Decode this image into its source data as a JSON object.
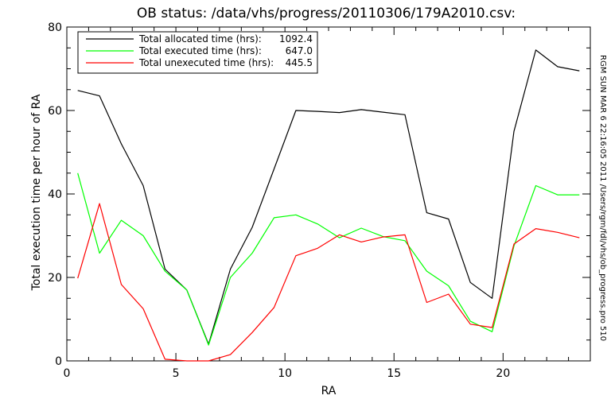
{
  "chart_data": {
    "type": "line",
    "title": "OB status: /data/vhs/progress/20110306/179A2010.csv:",
    "xlabel": "RA",
    "ylabel": "Total execution time per hour of RA",
    "xlim": [
      0,
      24
    ],
    "ylim": [
      0,
      80
    ],
    "x_ticks": [
      0,
      5,
      10,
      15,
      20
    ],
    "y_ticks": [
      0,
      20,
      40,
      60,
      80
    ],
    "x_minor_step": 1,
    "y_minor_step": 5,
    "grid": false,
    "legend_position": "top-left",
    "side_text": "RGM SUN MAR  6 22:16:05 2011  /Users/rgm/fdl/vhs/ob_progress.pro 510",
    "x": [
      0.5,
      1.5,
      2.5,
      3.5,
      4.5,
      5.5,
      6.5,
      7.5,
      8.5,
      9.5,
      10.5,
      11.5,
      12.5,
      13.5,
      14.5,
      15.5,
      16.5,
      17.5,
      18.5,
      19.5,
      20.5,
      21.5,
      22.5,
      23.5
    ],
    "series": [
      {
        "name": "Total allocated time (hrs):",
        "total": "1092.4",
        "color": "#000000",
        "values": [
          64.8,
          63.5,
          52.0,
          42.0,
          22.0,
          17.0,
          4.0,
          22.0,
          32.0,
          46.0,
          60.0,
          59.8,
          59.5,
          60.2,
          59.6,
          59.0,
          35.5,
          34.0,
          18.8,
          15.0,
          55.0,
          74.5,
          70.5,
          69.5
        ]
      },
      {
        "name": "Total executed time (hrs):",
        "total": "647.0",
        "color": "#00ff00",
        "values": [
          45.0,
          25.8,
          33.7,
          30.0,
          21.5,
          17.0,
          3.8,
          20.0,
          25.8,
          34.3,
          35.0,
          32.8,
          29.5,
          31.8,
          29.8,
          28.8,
          21.5,
          18.0,
          9.5,
          7.0,
          27.5,
          42.0,
          39.8,
          39.8
        ]
      },
      {
        "name": "Total unexecuted time (hrs):",
        "total": "445.5",
        "color": "#ff0000",
        "values": [
          19.8,
          37.7,
          18.3,
          12.5,
          0.4,
          0.0,
          0.0,
          1.5,
          6.8,
          12.8,
          25.2,
          27.0,
          30.2,
          28.5,
          29.7,
          30.2,
          14.0,
          16.0,
          8.8,
          8.0,
          28.0,
          31.7,
          30.8,
          29.5
        ]
      }
    ]
  }
}
